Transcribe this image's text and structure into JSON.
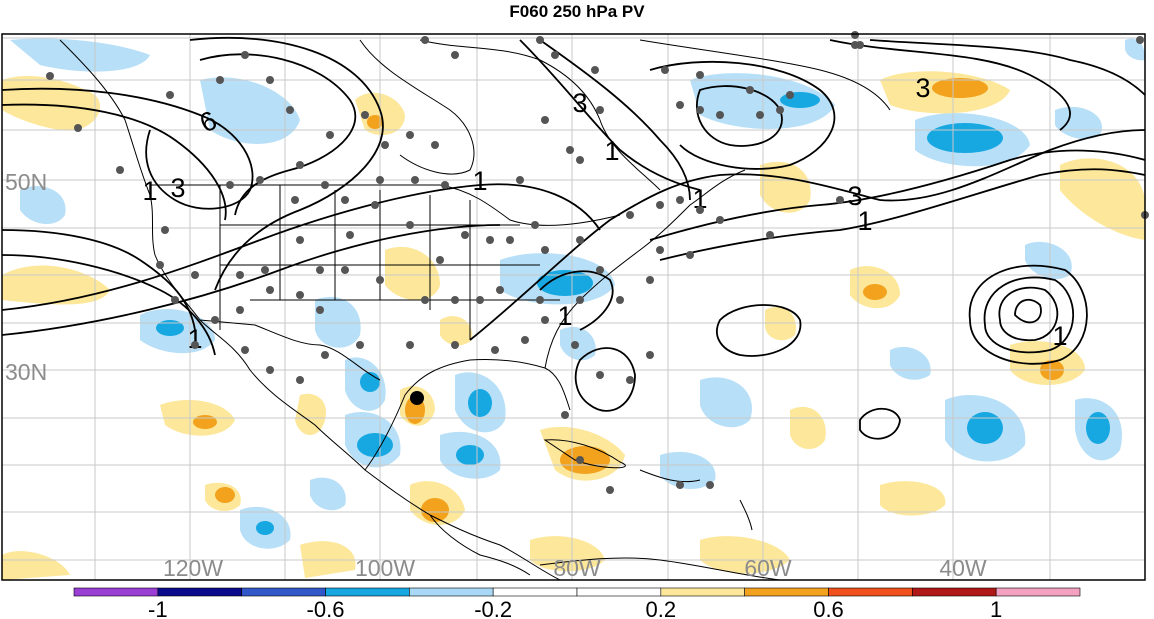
{
  "title": "F060 250 hPa PV",
  "lat_labels": [
    "50N",
    "30N"
  ],
  "lon_labels": [
    "120W",
    "100W",
    "80W",
    "60W",
    "40W"
  ],
  "contour_labels": [
    "6",
    "3",
    "3",
    "1",
    "1",
    "1",
    "1",
    "1",
    "3",
    "1",
    "3",
    "1",
    "1"
  ],
  "colorbar": {
    "ticks": [
      "-1",
      "-0.6",
      "-0.2",
      "0.2",
      "0.6",
      "1"
    ],
    "colors": [
      "#9b3ed6",
      "#0a0a8c",
      "#3157c8",
      "#17a8e2",
      "#a8d8f5",
      "#ffffff",
      "#ffffff",
      "#fde79a",
      "#f2a21c",
      "#f0501c",
      "#b01818",
      "#f4a0c0"
    ]
  },
  "colors": {
    "pos_weak": "#fde79a",
    "pos_mid": "#f2a21c",
    "neg_weak": "#b7dff7",
    "neg_mid": "#17a8e2",
    "station": "#555555",
    "boundary": "#000000",
    "grid": "#c8c8c8"
  }
}
